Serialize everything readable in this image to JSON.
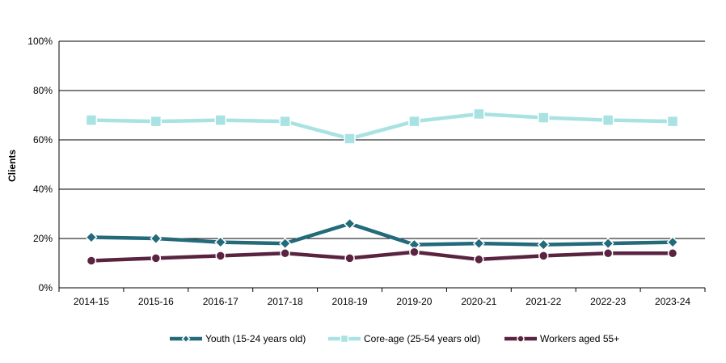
{
  "chart_data": {
    "type": "line",
    "title": "",
    "xlabel": "",
    "ylabel": "Clients",
    "categories": [
      "2014-15",
      "2015-16",
      "2016-17",
      "2017-18",
      "2018-19",
      "2019-20",
      "2020-21",
      "2021-22",
      "2022-23",
      "2023-24"
    ],
    "y_ticks": [
      "0%",
      "20%",
      "40%",
      "60%",
      "80%",
      "100%"
    ],
    "ylim": [
      0,
      100
    ],
    "grid": true,
    "legend_position": "bottom",
    "series": [
      {
        "name": "Youth (15-24 years old)",
        "marker": "diamond",
        "color": "#236a7a",
        "values": [
          20.5,
          20,
          18.5,
          18,
          26,
          17.5,
          18,
          17.5,
          18,
          18.5
        ]
      },
      {
        "name": "Core-age (25-54 years old)",
        "marker": "square",
        "color": "#a9e2e2",
        "values": [
          68,
          67.5,
          68,
          67.5,
          60.5,
          67.5,
          70.5,
          69,
          68,
          67.5
        ]
      },
      {
        "name": "Workers aged 55+",
        "marker": "circle",
        "color": "#5a2340",
        "values": [
          11,
          12,
          13,
          14,
          12,
          14.5,
          11.5,
          13,
          14,
          14
        ]
      }
    ]
  }
}
